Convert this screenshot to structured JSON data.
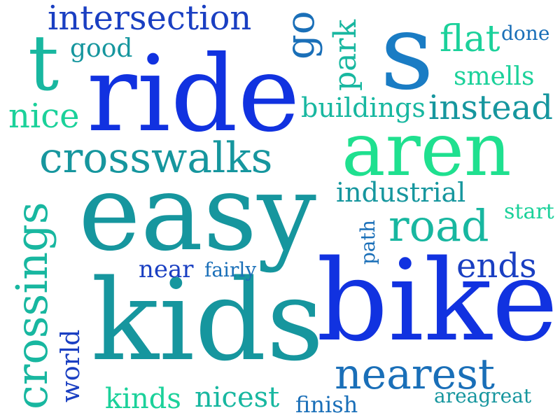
{
  "palette": {
    "blue": "#1132e0",
    "dark_blue": "#1a3fc2",
    "mid_blue": "#1a6fb8",
    "teal": "#16969e",
    "teal_green": "#18b7a0",
    "aqua": "#1bd19a",
    "green": "#1fe08f",
    "background": "#ffffff"
  },
  "words": [
    {
      "text": "ride",
      "color": "#1132e0"
    },
    {
      "text": "easy",
      "color": "#16969e"
    },
    {
      "text": "kids",
      "color": "#16969e"
    },
    {
      "text": "bike",
      "color": "#1132e0"
    },
    {
      "text": "aren",
      "color": "#1fe08f"
    },
    {
      "text": "s",
      "color": "#1a7cc4"
    },
    {
      "text": "t",
      "color": "#18b7a0"
    },
    {
      "text": "crossings",
      "color": "#18b7a0"
    },
    {
      "text": "crosswalks",
      "color": "#16969e"
    },
    {
      "text": "intersection",
      "color": "#1a3fc2"
    },
    {
      "text": "road",
      "color": "#18b7a0"
    },
    {
      "text": "nearest",
      "color": "#1a6fb8"
    },
    {
      "text": "instead",
      "color": "#16969e"
    },
    {
      "text": "buildings",
      "color": "#18b7a0"
    },
    {
      "text": "go",
      "color": "#1a6fb8"
    },
    {
      "text": "park",
      "color": "#18b7a0"
    },
    {
      "text": "flat",
      "color": "#1bd19a"
    },
    {
      "text": "nice",
      "color": "#1bd19a"
    },
    {
      "text": "industrial",
      "color": "#16969e"
    },
    {
      "text": "smells",
      "color": "#1bd19a"
    },
    {
      "text": "ends",
      "color": "#1a3fc2"
    },
    {
      "text": "good",
      "color": "#16969e"
    },
    {
      "text": "done",
      "color": "#1a6fb8"
    },
    {
      "text": "start",
      "color": "#1bd19a"
    },
    {
      "text": "near",
      "color": "#1a3fc2"
    },
    {
      "text": "fairly",
      "color": "#1a6fb8"
    },
    {
      "text": "path",
      "color": "#1a6fb8"
    },
    {
      "text": "world",
      "color": "#1a3fc2"
    },
    {
      "text": "kinds",
      "color": "#1bd19a"
    },
    {
      "text": "nicest",
      "color": "#18b7a0"
    },
    {
      "text": "finish",
      "color": "#1a6fb8"
    },
    {
      "text": "areagreat",
      "color": "#16969e"
    }
  ]
}
